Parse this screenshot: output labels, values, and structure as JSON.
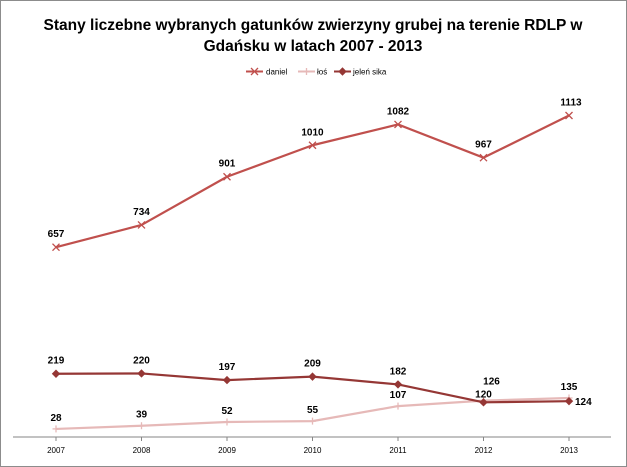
{
  "chart_data": {
    "type": "line",
    "title": "Stany liczebne wybranych gatunków zwierzyny grubej na terenie RDLP w Gdańsku w latach 2007 - 2013",
    "title_lines": [
      "Stany liczebne wybranych gatunków zwierzyny grubej na terenie RDLP w",
      "Gdańsku w latach 2007 - 2013"
    ],
    "xlabel": "",
    "ylabel": "",
    "categories": [
      "2007",
      "2008",
      "2009",
      "2010",
      "2011",
      "2012",
      "2013"
    ],
    "ylim": [
      0,
      1250
    ],
    "grid": false,
    "legend_position": "top",
    "series": [
      {
        "name": "daniel",
        "values": [
          657,
          734,
          901,
          1010,
          1082,
          967,
          1113
        ],
        "color": "#c0504d",
        "marker": "x"
      },
      {
        "name": "łoś",
        "values": [
          28,
          39,
          52,
          55,
          107,
          126,
          135
        ],
        "color": "#e6b9b8",
        "marker": "plus"
      },
      {
        "name": "jeleń sika",
        "values": [
          219,
          220,
          197,
          209,
          182,
          120,
          124
        ],
        "color": "#953735",
        "marker": "diamond"
      }
    ]
  }
}
